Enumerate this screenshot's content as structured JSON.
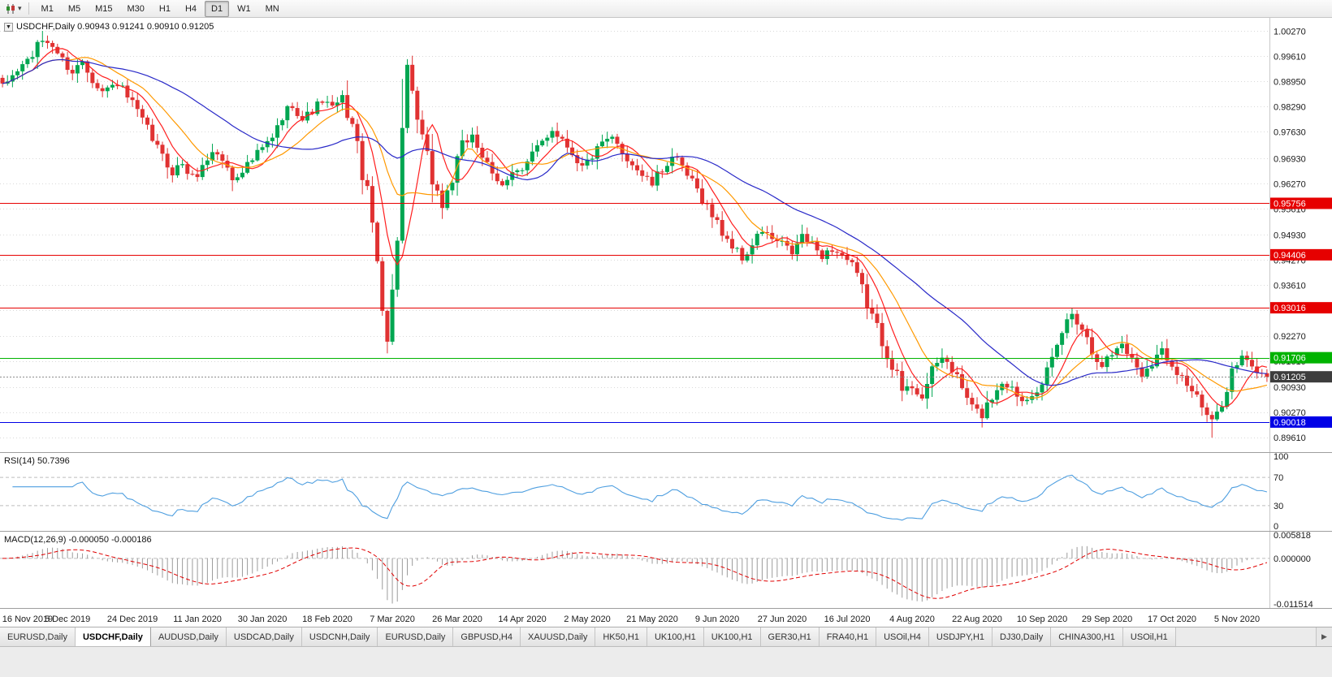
{
  "toolbar": {
    "caret": "▾",
    "timeframes": [
      {
        "label": "M1",
        "active": false
      },
      {
        "label": "M5",
        "active": false
      },
      {
        "label": "M15",
        "active": false
      },
      {
        "label": "M30",
        "active": false
      },
      {
        "label": "H1",
        "active": false
      },
      {
        "label": "H4",
        "active": false
      },
      {
        "label": "D1",
        "active": true
      },
      {
        "label": "W1",
        "active": false
      },
      {
        "label": "MN",
        "active": false
      }
    ]
  },
  "chart": {
    "collapse_icon": "▼",
    "title": "USDCHF,Daily",
    "ohlc_text": " 0.90943 0.91241 0.90910 0.91205"
  },
  "indicators": {
    "rsi": {
      "label": "RSI(14) 50.7396"
    },
    "macd": {
      "label": "MACD(12,26,9) -0.000050 -0.000186"
    }
  },
  "tabs": [
    {
      "label": "EURUSD,Daily",
      "active": false
    },
    {
      "label": "USDCHF,Daily",
      "active": true
    },
    {
      "label": "AUDUSD,Daily",
      "active": false
    },
    {
      "label": "USDCAD,Daily",
      "active": false
    },
    {
      "label": "USDCNH,Daily",
      "active": false
    },
    {
      "label": "EURUSD,Daily",
      "active": false
    },
    {
      "label": "GBPUSD,H4",
      "active": false
    },
    {
      "label": "XAUUSD,Daily",
      "active": false
    },
    {
      "label": "HK50,H1",
      "active": false
    },
    {
      "label": "UK100,H1",
      "active": false
    },
    {
      "label": "UK100,H1",
      "active": false
    },
    {
      "label": "GER30,H1",
      "active": false
    },
    {
      "label": "FRA40,H1",
      "active": false
    },
    {
      "label": "USOil,H4",
      "active": false
    },
    {
      "label": "USDJPY,H1",
      "active": false
    },
    {
      "label": "DJ30,Daily",
      "active": false
    },
    {
      "label": "CHINA300,H1",
      "active": false
    },
    {
      "label": "USOil,H1",
      "active": false
    }
  ],
  "tab_scroll_right": "▶",
  "colors": {
    "up": "#00a651",
    "down": "#e03232",
    "grid": "#d9d9d9",
    "axis_text": "#1a1a1a",
    "separator": "#9e9e9e"
  },
  "chart_data": {
    "type": "candlestick",
    "symbol": "USDCHF",
    "timeframe": "Daily",
    "title": "USDCHF,Daily 0.90943 0.91241 0.90910 0.91205",
    "bars": 254,
    "price_range": {
      "max": 1.006,
      "min": 0.8925
    },
    "y_axis_values": [
      1.0027,
      0.9961,
      0.9895,
      0.9829,
      0.9763,
      0.9693,
      0.9627,
      0.9561,
      0.9493,
      0.9427,
      0.9361,
      0.9295,
      0.9227,
      0.9161,
      0.9093,
      0.9027,
      0.8961
    ],
    "x_labels": [
      {
        "bar": 0,
        "label": "16 Nov 2019"
      },
      {
        "bar": 13,
        "label": "5 Dec 2019"
      },
      {
        "bar": 26,
        "label": "24 Dec 2019"
      },
      {
        "bar": 39,
        "label": "11 Jan 2020"
      },
      {
        "bar": 52,
        "label": "30 Jan 2020"
      },
      {
        "bar": 65,
        "label": "18 Feb 2020"
      },
      {
        "bar": 78,
        "label": "7 Mar 2020"
      },
      {
        "bar": 91,
        "label": "26 Mar 2020"
      },
      {
        "bar": 104,
        "label": "14 Apr 2020"
      },
      {
        "bar": 117,
        "label": "2 May 2020"
      },
      {
        "bar": 130,
        "label": "21 May 2020"
      },
      {
        "bar": 143,
        "label": "9 Jun 2020"
      },
      {
        "bar": 156,
        "label": "27 Jun 2020"
      },
      {
        "bar": 169,
        "label": "16 Jul 2020"
      },
      {
        "bar": 182,
        "label": "4 Aug 2020"
      },
      {
        "bar": 195,
        "label": "22 Aug 2020"
      },
      {
        "bar": 208,
        "label": "10 Sep 2020"
      },
      {
        "bar": 221,
        "label": "29 Sep 2020"
      },
      {
        "bar": 234,
        "label": "17 Oct 2020"
      },
      {
        "bar": 247,
        "label": "5 Nov 2020"
      }
    ],
    "close_anchors": [
      [
        0,
        0.988
      ],
      [
        3,
        0.9925
      ],
      [
        6,
        0.9965
      ],
      [
        8,
        1.0005
      ],
      [
        10,
        0.999
      ],
      [
        12,
        0.995
      ],
      [
        14,
        0.992
      ],
      [
        16,
        0.995
      ],
      [
        18,
        0.9905
      ],
      [
        20,
        0.987
      ],
      [
        23,
        0.989
      ],
      [
        26,
        0.9835
      ],
      [
        28,
        0.979
      ],
      [
        30,
        0.9745
      ],
      [
        32,
        0.9695
      ],
      [
        34,
        0.966
      ],
      [
        36,
        0.968
      ],
      [
        38,
        0.964
      ],
      [
        40,
        0.967
      ],
      [
        42,
        0.9715
      ],
      [
        44,
        0.969
      ],
      [
        46,
        0.964
      ],
      [
        48,
        0.9665
      ],
      [
        50,
        0.969
      ],
      [
        52,
        0.972
      ],
      [
        54,
        0.9745
      ],
      [
        56,
        0.98
      ],
      [
        58,
        0.984
      ],
      [
        60,
        0.9795
      ],
      [
        62,
        0.982
      ],
      [
        64,
        0.9845
      ],
      [
        66,
        0.9825
      ],
      [
        68,
        0.985
      ],
      [
        70,
        0.978
      ],
      [
        72,
        0.966
      ],
      [
        74,
        0.952
      ],
      [
        76,
        0.933
      ],
      [
        77,
        0.923
      ],
      [
        78,
        0.933
      ],
      [
        79,
        0.952
      ],
      [
        80,
        0.976
      ],
      [
        81,
        0.989
      ],
      [
        82,
        0.985
      ],
      [
        84,
        0.974
      ],
      [
        86,
        0.964
      ],
      [
        88,
        0.957
      ],
      [
        90,
        0.964
      ],
      [
        92,
        0.972
      ],
      [
        94,
        0.976
      ],
      [
        96,
        0.97
      ],
      [
        98,
        0.964
      ],
      [
        100,
        0.962
      ],
      [
        102,
        0.967
      ],
      [
        104,
        0.966
      ],
      [
        106,
        0.97
      ],
      [
        108,
        0.974
      ],
      [
        110,
        0.977
      ],
      [
        112,
        0.9745
      ],
      [
        114,
        0.971
      ],
      [
        116,
        0.967
      ],
      [
        118,
        0.97
      ],
      [
        120,
        0.973
      ],
      [
        122,
        0.9745
      ],
      [
        124,
        0.971
      ],
      [
        126,
        0.968
      ],
      [
        128,
        0.965
      ],
      [
        130,
        0.9625
      ],
      [
        132,
        0.9665
      ],
      [
        134,
        0.97
      ],
      [
        136,
        0.9665
      ],
      [
        138,
        0.963
      ],
      [
        140,
        0.959
      ],
      [
        142,
        0.9545
      ],
      [
        144,
        0.95
      ],
      [
        146,
        0.9465
      ],
      [
        148,
        0.943
      ],
      [
        150,
        0.9465
      ],
      [
        152,
        0.9505
      ],
      [
        154,
        0.948
      ],
      [
        156,
        0.947
      ],
      [
        158,
        0.9445
      ],
      [
        160,
        0.949
      ],
      [
        162,
        0.9465
      ],
      [
        164,
        0.944
      ],
      [
        166,
        0.9455
      ],
      [
        168,
        0.944
      ],
      [
        170,
        0.941
      ],
      [
        172,
        0.935
      ],
      [
        174,
        0.928
      ],
      [
        176,
        0.9215
      ],
      [
        178,
        0.9155
      ],
      [
        180,
        0.9085
      ],
      [
        182,
        0.9095
      ],
      [
        184,
        0.907
      ],
      [
        186,
        0.913
      ],
      [
        188,
        0.9175
      ],
      [
        190,
        0.914
      ],
      [
        192,
        0.909
      ],
      [
        194,
        0.904
      ],
      [
        196,
        0.902
      ],
      [
        198,
        0.907
      ],
      [
        200,
        0.911
      ],
      [
        202,
        0.909
      ],
      [
        204,
        0.906
      ],
      [
        206,
        0.908
      ],
      [
        208,
        0.9095
      ],
      [
        210,
        0.916
      ],
      [
        212,
        0.924
      ],
      [
        214,
        0.929
      ],
      [
        216,
        0.925
      ],
      [
        218,
        0.919
      ],
      [
        220,
        0.9155
      ],
      [
        222,
        0.918
      ],
      [
        224,
        0.921
      ],
      [
        226,
        0.9165
      ],
      [
        228,
        0.913
      ],
      [
        230,
        0.916
      ],
      [
        232,
        0.919
      ],
      [
        234,
        0.9155
      ],
      [
        236,
        0.912
      ],
      [
        238,
        0.9085
      ],
      [
        240,
        0.904
      ],
      [
        242,
        0.8995
      ],
      [
        244,
        0.906
      ],
      [
        246,
        0.9135
      ],
      [
        248,
        0.917
      ],
      [
        250,
        0.9145
      ],
      [
        252,
        0.9125
      ],
      [
        253,
        0.91205
      ]
    ],
    "extremes": [
      {
        "bar": 8,
        "high": 1.0028
      },
      {
        "bar": 77,
        "low": 0.9182
      },
      {
        "bar": 81,
        "high": 0.9902
      },
      {
        "bar": 188,
        "high": 0.9195
      },
      {
        "bar": 214,
        "high": 0.9302
      },
      {
        "bar": 242,
        "low": 0.8961
      }
    ],
    "levels": [
      {
        "price": 0.95756,
        "color": "#e60000"
      },
      {
        "price": 0.94406,
        "color": "#e60000"
      },
      {
        "price": 0.93016,
        "color": "#e60000"
      },
      {
        "price": 0.91706,
        "color": "#00b300"
      },
      {
        "price": 0.90018,
        "color": "#0000e6"
      }
    ],
    "current_price": {
      "price": 0.91205,
      "tag_color": "#3d3d3d"
    },
    "moving_averages": [
      {
        "period": 7,
        "color": "#ff1f1f"
      },
      {
        "period": 14,
        "color": "#ff9900"
      },
      {
        "period": 34,
        "color": "#2929c8"
      }
    ],
    "rsi": {
      "period": 14,
      "current": 50.7396,
      "color": "#4f9fe0",
      "levels": [
        70,
        30
      ],
      "axis_labels": [
        100,
        70,
        30,
        0
      ]
    },
    "macd": {
      "fast": 12,
      "slow": 26,
      "signal": 9,
      "values_text": "-0.000050 -0.000186",
      "hist_color": "#9b9b9b",
      "signal_color": "#e00000",
      "scale_max": 0.005818,
      "scale_min": -0.011514,
      "axis_labels": [
        0.005818,
        0,
        -0.011514
      ]
    }
  }
}
